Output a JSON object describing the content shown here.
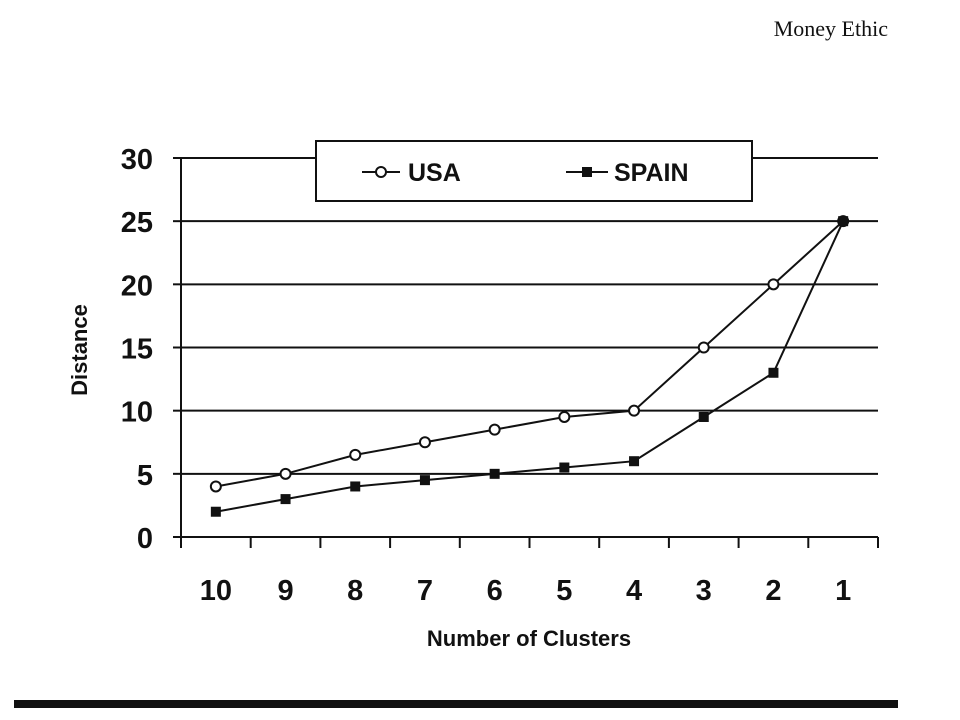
{
  "header": {
    "text": "Money Ethic"
  },
  "chart_data": {
    "type": "line",
    "categories": [
      "10",
      "9",
      "8",
      "7",
      "6",
      "5",
      "4",
      "3",
      "2",
      "1"
    ],
    "series": [
      {
        "name": "USA",
        "marker": "open-circle",
        "values": [
          4,
          5,
          6.5,
          7.5,
          8.5,
          9.5,
          10,
          15,
          20,
          25
        ]
      },
      {
        "name": "SPAIN",
        "marker": "filled-square",
        "values": [
          2,
          3,
          4,
          4.5,
          5,
          5.5,
          6,
          9.5,
          13,
          25
        ]
      }
    ],
    "xlabel": "Number of Clusters",
    "ylabel": "Distance",
    "ylim": [
      0,
      30
    ],
    "yticks": [
      0,
      5,
      10,
      15,
      20,
      25,
      30
    ],
    "grid": true,
    "legend_position": "top-center",
    "colors": {
      "line": "#111111",
      "grid": "#111111",
      "background": "#ffffff"
    }
  }
}
